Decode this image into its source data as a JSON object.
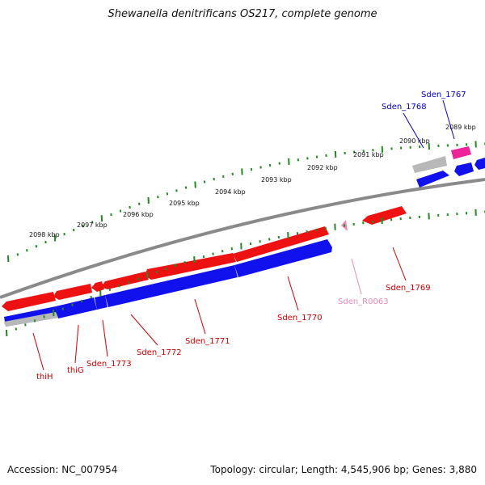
{
  "title": "Shewanella denitrificans OS217, complete genome",
  "footer": {
    "accession": "Accession: NC_007954",
    "summary": "Topology: circular; Length: 4,545,906 bp; Genes: 3,880"
  },
  "colors": {
    "forward_gene": "#ee1111",
    "reverse_gene": "#1111ee",
    "pseudo_gene": "#b8b8b8",
    "rna_gene": "#ee2299",
    "ncrna_label": "#ee88bb",
    "backbone": "#8a8a8a",
    "ticks": "#228822",
    "forward_label": "#cc0000",
    "reverse_label": "#0000cc"
  },
  "scale_labels": [
    "2089 kbp",
    "2090 kbp",
    "2091 kbp",
    "2092 kbp",
    "2093 kbp",
    "2094 kbp",
    "2095 kbp",
    "2096 kbp",
    "2097 kbp",
    "2098 kbp"
  ],
  "gene_labels": {
    "sden_1767": "Sden_1767",
    "sden_1768": "Sden_1768",
    "sden_1769": "Sden_1769",
    "sden_r0063": "Sden_R0063",
    "sden_1770": "Sden_1770",
    "sden_1771": "Sden_1771",
    "sden_1772": "Sden_1772",
    "sden_1773": "Sden_1773",
    "thig": "thiG",
    "thih": "thiH"
  }
}
